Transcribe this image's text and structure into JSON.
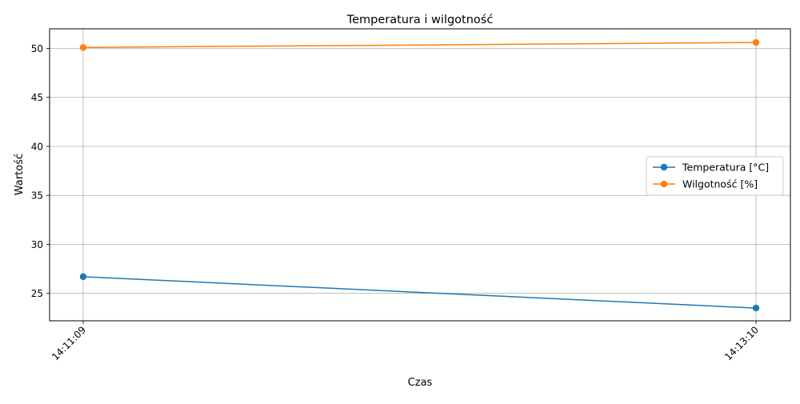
{
  "chart_data": {
    "type": "line",
    "title": "Temperatura i wilgotność",
    "xlabel": "Czas",
    "ylabel": "Wartość",
    "categories": [
      "14:11:09",
      "14:13:10"
    ],
    "ylim": [
      22.2,
      52.0
    ],
    "yticks": [
      25,
      30,
      35,
      40,
      45,
      50
    ],
    "grid": true,
    "legend_position": "center-right",
    "series": [
      {
        "name": "Temperatura [°C]",
        "values": [
          26.7,
          23.5
        ],
        "color": "#1f77b4"
      },
      {
        "name": "Wilgotność [%]",
        "values": [
          50.1,
          50.6
        ],
        "color": "#ff7f0e"
      }
    ]
  }
}
